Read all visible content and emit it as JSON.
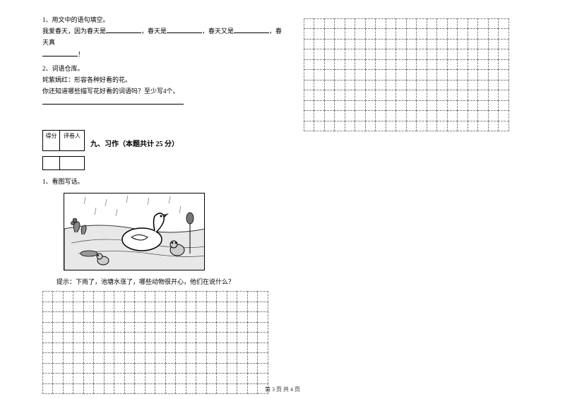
{
  "q1": {
    "num": "1、",
    "title": "用文中的语句填空。",
    "line1_a": "我爱春天，因为春天是",
    "line1_b": "，春天是",
    "line1_c": "，春天又是",
    "line1_d": "，春天真",
    "line2": "！"
  },
  "q2": {
    "num": "2、",
    "title": "词语仓库。",
    "line1": "姹紫嫣红：形容各种好看的花。",
    "line2": "你还知道哪些描写花好看的词语吗？至少写4个。"
  },
  "section9": {
    "scoreLabel1": "得分",
    "scoreLabel2": "评卷人",
    "title": "九、习作（本题共计 25 分）"
  },
  "essay": {
    "num": "1、",
    "title": "看图写话。",
    "hint": "提示：下雨了，池塘水涨了，哪些动物很开心，他们在说什么？"
  },
  "grid": {
    "leftRows": 10,
    "leftCols": 22,
    "rightRows": 11,
    "rightCols": 20
  },
  "pageNum": "第 3 页 共 4 页",
  "colors": {
    "text": "#000000",
    "bg": "#ffffff",
    "grid": "#888888"
  }
}
